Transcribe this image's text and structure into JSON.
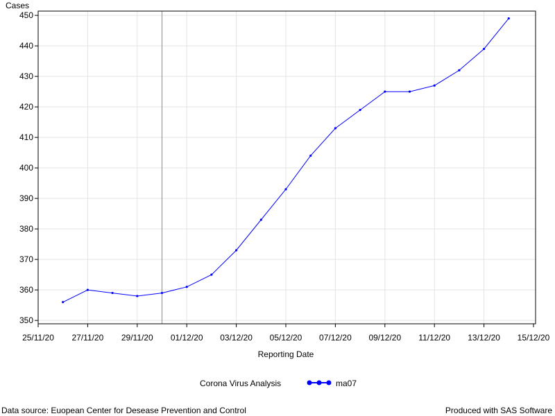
{
  "chart_data": {
    "type": "line",
    "ylabel": "Cases",
    "xlabel": "Reporting Date",
    "legend_title": "Corona Virus Analysis",
    "footnote_left": "Data source: Euopean Center for Desease Prevention and Control",
    "footnote_right": "Produced with SAS Software",
    "x": [
      "26/11/20",
      "27/11/20",
      "28/11/20",
      "29/11/20",
      "30/11/20",
      "01/12/20",
      "02/12/20",
      "03/12/20",
      "04/12/20",
      "05/12/20",
      "06/12/20",
      "07/12/20",
      "08/12/20",
      "09/12/20",
      "10/12/20",
      "11/12/20",
      "12/12/20",
      "13/12/20",
      "14/12/20"
    ],
    "series": [
      {
        "name": "ma07",
        "color": "#0000ff",
        "values": [
          356,
          360,
          359,
          358,
          359,
          361,
          365,
          373,
          383,
          393,
          404,
          413,
          419,
          425,
          425,
          427,
          432,
          439,
          449
        ]
      }
    ],
    "xlim": [
      "25/11/20",
      "15/12/20"
    ],
    "xticks": [
      "25/11/20",
      "27/11/20",
      "29/11/20",
      "01/12/20",
      "03/12/20",
      "05/12/20",
      "07/12/20",
      "09/12/20",
      "11/12/20",
      "13/12/20",
      "15/12/20"
    ],
    "ylim": [
      348.9,
      451.4
    ],
    "yticks": [
      350,
      360,
      370,
      380,
      390,
      400,
      410,
      420,
      430,
      440,
      450
    ],
    "reference_line_x": "30/11/20",
    "grid": true
  }
}
